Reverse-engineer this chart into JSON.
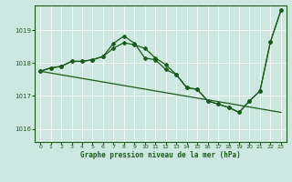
{
  "background_color": "#cce8e0",
  "grid_color": "#ffffff",
  "line_color": "#1a5c1a",
  "title": "Graphe pression niveau de la mer (hPa)",
  "xlim": [
    -0.5,
    23.5
  ],
  "ylim": [
    1015.6,
    1019.75
  ],
  "yticks": [
    1016,
    1017,
    1018,
    1019
  ],
  "xticks": [
    0,
    1,
    2,
    3,
    4,
    5,
    6,
    7,
    8,
    9,
    10,
    11,
    12,
    13,
    14,
    15,
    16,
    17,
    18,
    19,
    20,
    21,
    22,
    23
  ],
  "line1_x": [
    0,
    1,
    2,
    3,
    4,
    5,
    6,
    7,
    8,
    9,
    10,
    11,
    12,
    13,
    14,
    15,
    16,
    17,
    18,
    19,
    20,
    21,
    22,
    23
  ],
  "line1_y": [
    1017.75,
    1017.85,
    1017.9,
    1018.05,
    1018.05,
    1018.1,
    1018.2,
    1018.6,
    1018.82,
    1018.6,
    1018.15,
    1018.1,
    1017.8,
    1017.65,
    1017.25,
    1017.2,
    1016.85,
    1016.75,
    1016.65,
    1016.5,
    1016.85,
    1017.15,
    1018.65,
    1019.6
  ],
  "line2_x": [
    0,
    1,
    2,
    3,
    4,
    5,
    6,
    7,
    8,
    9,
    10,
    11,
    12,
    13,
    14,
    15,
    16,
    17,
    18,
    19,
    20,
    21,
    22,
    23
  ],
  "line2_y": [
    1017.75,
    1017.85,
    1017.9,
    1018.05,
    1018.05,
    1018.1,
    1018.2,
    1018.45,
    1018.62,
    1018.55,
    1018.45,
    1018.15,
    1017.95,
    1017.65,
    1017.25,
    1017.2,
    1016.85,
    1016.75,
    1016.65,
    1016.5,
    1016.85,
    1017.15,
    1018.65,
    1019.6
  ],
  "line3_x": [
    0,
    23
  ],
  "line3_y": [
    1017.75,
    1016.5
  ],
  "marker": "D",
  "markersize": 2.0,
  "linewidth": 0.9
}
